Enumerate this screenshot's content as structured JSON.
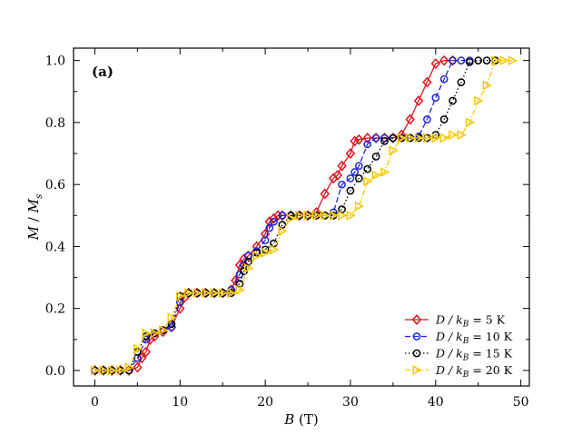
{
  "chart_data": {
    "type": "line",
    "panel_label": "(a)",
    "xlabel": "B (T)",
    "ylabel": "M / M_s",
    "xlabel_text": {
      "var": "B",
      "unit": " (T)"
    },
    "ylabel_text": {
      "var1": "M",
      "sep": " / ",
      "var2": "M",
      "sub": "s"
    },
    "xlim": [
      -2.5,
      51
    ],
    "ylim": [
      -0.05,
      1.04
    ],
    "xticks": [
      "0",
      "10",
      "20",
      "30",
      "40",
      "50"
    ],
    "yticks": [
      "0.0",
      "0.2",
      "0.4",
      "0.6",
      "0.8",
      "1.0"
    ],
    "legend_position": "bottom-right",
    "series": [
      {
        "name": "D / k_B = 5 K",
        "label": {
          "prefix": "D / k",
          "sub": "B",
          "suffix": " =  5 K"
        },
        "color": "#e0141e",
        "dash": "",
        "marker": "diamond",
        "points": [
          [
            0,
            0
          ],
          [
            1,
            0
          ],
          [
            2,
            0
          ],
          [
            3,
            0
          ],
          [
            4,
            0
          ],
          [
            5,
            0.01
          ],
          [
            5.5,
            0.04
          ],
          [
            6,
            0.06
          ],
          [
            6.5,
            0.1
          ],
          [
            7,
            0.11
          ],
          [
            8,
            0.125
          ],
          [
            9,
            0.14
          ],
          [
            10,
            0.2
          ],
          [
            10.5,
            0.235
          ],
          [
            11,
            0.25
          ],
          [
            12,
            0.25
          ],
          [
            13,
            0.25
          ],
          [
            14,
            0.25
          ],
          [
            15,
            0.25
          ],
          [
            16,
            0.26
          ],
          [
            16.5,
            0.29
          ],
          [
            17,
            0.34
          ],
          [
            17.5,
            0.36
          ],
          [
            18,
            0.37
          ],
          [
            19,
            0.4
          ],
          [
            20,
            0.44
          ],
          [
            20.5,
            0.48
          ],
          [
            21,
            0.49
          ],
          [
            21.5,
            0.5
          ],
          [
            22,
            0.5
          ],
          [
            23,
            0.5
          ],
          [
            24,
            0.5
          ],
          [
            25,
            0.5
          ],
          [
            26,
            0.51
          ],
          [
            27,
            0.57
          ],
          [
            28,
            0.62
          ],
          [
            28.5,
            0.63
          ],
          [
            29,
            0.66
          ],
          [
            30,
            0.7
          ],
          [
            30.5,
            0.74
          ],
          [
            31,
            0.745
          ],
          [
            32,
            0.75
          ],
          [
            33,
            0.75
          ],
          [
            34,
            0.75
          ],
          [
            35,
            0.75
          ],
          [
            36,
            0.76
          ],
          [
            37,
            0.81
          ],
          [
            38,
            0.87
          ],
          [
            39,
            0.93
          ],
          [
            40,
            0.99
          ],
          [
            41,
            1.0
          ],
          [
            42,
            1.0
          ]
        ]
      },
      {
        "name": "D / k_B = 10 K",
        "label": {
          "prefix": "D / k",
          "sub": "B",
          "suffix": " = 10 K"
        },
        "color": "#1e28d2",
        "dash": "6,3",
        "marker": "circle",
        "points": [
          [
            0,
            0
          ],
          [
            1,
            0
          ],
          [
            2,
            0
          ],
          [
            3,
            0
          ],
          [
            4,
            0
          ],
          [
            5,
            0.04
          ],
          [
            6,
            0.1
          ],
          [
            7,
            0.12
          ],
          [
            8,
            0.13
          ],
          [
            9,
            0.14
          ],
          [
            10,
            0.22
          ],
          [
            11,
            0.25
          ],
          [
            12,
            0.25
          ],
          [
            13,
            0.25
          ],
          [
            14,
            0.25
          ],
          [
            15,
            0.25
          ],
          [
            16,
            0.26
          ],
          [
            17,
            0.31
          ],
          [
            17.5,
            0.34
          ],
          [
            18,
            0.37
          ],
          [
            19,
            0.385
          ],
          [
            20,
            0.42
          ],
          [
            20.5,
            0.46
          ],
          [
            21,
            0.48
          ],
          [
            22,
            0.5
          ],
          [
            23,
            0.5
          ],
          [
            24,
            0.5
          ],
          [
            25,
            0.5
          ],
          [
            26,
            0.5
          ],
          [
            27,
            0.5
          ],
          [
            28,
            0.51
          ],
          [
            29,
            0.6
          ],
          [
            30,
            0.62
          ],
          [
            30.5,
            0.64
          ],
          [
            31,
            0.66
          ],
          [
            32,
            0.73
          ],
          [
            33,
            0.75
          ],
          [
            34,
            0.75
          ],
          [
            35,
            0.75
          ],
          [
            36,
            0.75
          ],
          [
            37,
            0.75
          ],
          [
            38,
            0.755
          ],
          [
            39,
            0.81
          ],
          [
            40,
            0.88
          ],
          [
            41,
            0.94
          ],
          [
            42,
            1.0
          ],
          [
            43,
            1.0
          ],
          [
            44,
            1.0
          ]
        ]
      },
      {
        "name": "D / k_B = 15 K",
        "label": {
          "prefix": "D / k",
          "sub": "B",
          "suffix": " = 15 K"
        },
        "color": "#000000",
        "dash": "1.5,2.5",
        "marker": "circle",
        "points": [
          [
            0,
            0
          ],
          [
            1,
            0
          ],
          [
            2,
            0
          ],
          [
            3,
            0
          ],
          [
            4,
            0
          ],
          [
            5,
            0.06
          ],
          [
            6,
            0.11
          ],
          [
            7,
            0.12
          ],
          [
            8,
            0.13
          ],
          [
            9,
            0.15
          ],
          [
            10,
            0.24
          ],
          [
            11,
            0.25
          ],
          [
            12,
            0.25
          ],
          [
            13,
            0.25
          ],
          [
            14,
            0.25
          ],
          [
            15,
            0.25
          ],
          [
            16,
            0.25
          ],
          [
            17,
            0.28
          ],
          [
            17.5,
            0.32
          ],
          [
            18,
            0.35
          ],
          [
            19,
            0.38
          ],
          [
            20,
            0.39
          ],
          [
            21,
            0.41
          ],
          [
            22,
            0.47
          ],
          [
            23,
            0.5
          ],
          [
            24,
            0.5
          ],
          [
            25,
            0.5
          ],
          [
            26,
            0.5
          ],
          [
            27,
            0.5
          ],
          [
            28,
            0.5
          ],
          [
            29,
            0.52
          ],
          [
            30,
            0.58
          ],
          [
            31,
            0.62
          ],
          [
            32,
            0.65
          ],
          [
            33,
            0.69
          ],
          [
            34,
            0.74
          ],
          [
            35,
            0.75
          ],
          [
            36,
            0.75
          ],
          [
            37,
            0.75
          ],
          [
            38,
            0.75
          ],
          [
            39,
            0.75
          ],
          [
            40,
            0.76
          ],
          [
            41,
            0.81
          ],
          [
            42,
            0.87
          ],
          [
            43,
            0.93
          ],
          [
            44,
            0.995
          ],
          [
            45,
            1.0
          ],
          [
            46,
            1.0
          ],
          [
            47,
            1.0
          ]
        ]
      },
      {
        "name": "D / k_B = 20 K",
        "label": {
          "prefix": "D / k",
          "sub": "B",
          "suffix": " = 20 K"
        },
        "color": "#f5c800",
        "dash": "6,2,1.5,2",
        "marker": "triangle",
        "points": [
          [
            0,
            0
          ],
          [
            1,
            0
          ],
          [
            2,
            0
          ],
          [
            3,
            0
          ],
          [
            4,
            0.01
          ],
          [
            5,
            0.07
          ],
          [
            6,
            0.12
          ],
          [
            7,
            0.12
          ],
          [
            8,
            0.13
          ],
          [
            9,
            0.17
          ],
          [
            10,
            0.24
          ],
          [
            11,
            0.25
          ],
          [
            12,
            0.25
          ],
          [
            13,
            0.25
          ],
          [
            14,
            0.25
          ],
          [
            15,
            0.25
          ],
          [
            16,
            0.25
          ],
          [
            17,
            0.26
          ],
          [
            18,
            0.33
          ],
          [
            19,
            0.37
          ],
          [
            20,
            0.38
          ],
          [
            21,
            0.39
          ],
          [
            22,
            0.45
          ],
          [
            23,
            0.49
          ],
          [
            24,
            0.5
          ],
          [
            25,
            0.5
          ],
          [
            26,
            0.5
          ],
          [
            27,
            0.5
          ],
          [
            28,
            0.5
          ],
          [
            29,
            0.5
          ],
          [
            30,
            0.5
          ],
          [
            31,
            0.53
          ],
          [
            32,
            0.61
          ],
          [
            33,
            0.63
          ],
          [
            34,
            0.64
          ],
          [
            35,
            0.71
          ],
          [
            36,
            0.75
          ],
          [
            37,
            0.75
          ],
          [
            38,
            0.75
          ],
          [
            39,
            0.75
          ],
          [
            40,
            0.75
          ],
          [
            41,
            0.75
          ],
          [
            42,
            0.76
          ],
          [
            43,
            0.76
          ],
          [
            44,
            0.8
          ],
          [
            45,
            0.87
          ],
          [
            46,
            0.92
          ],
          [
            47,
            1.0
          ],
          [
            48,
            1.0
          ],
          [
            49,
            1.0
          ]
        ]
      }
    ]
  }
}
